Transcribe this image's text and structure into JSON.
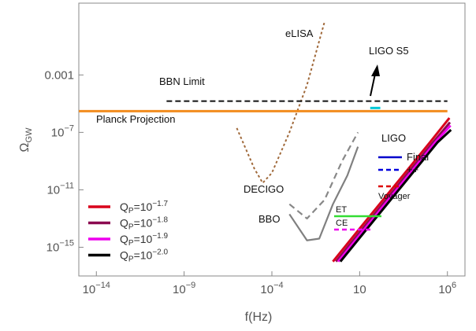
{
  "chart_data": {
    "type": "line",
    "xlabel": "f(Hz)",
    "ylabel": "Ω_GW",
    "x_scale": "log",
    "y_scale": "log",
    "xlim": [
      1e-15,
      10000000.0
    ],
    "ylim": [
      1e-17,
      100.0
    ],
    "grid": false,
    "legend_position": "bottom-left",
    "x_ticks": [
      {
        "value": 1e-14,
        "base": "10",
        "exp": "−14"
      },
      {
        "value": 1e-09,
        "base": "10",
        "exp": "−9"
      },
      {
        "value": 0.0001,
        "base": "10",
        "exp": "−4"
      },
      {
        "value": 10,
        "base": "10",
        "exp": ""
      },
      {
        "value": 1000000.0,
        "base": "10",
        "exp": "6"
      }
    ],
    "y_ticks": [
      {
        "value": 0.001,
        "base": "0.001",
        "exp": ""
      },
      {
        "value": 1e-07,
        "base": "10",
        "exp": "−7"
      },
      {
        "value": 1e-11,
        "base": "10",
        "exp": "−11"
      },
      {
        "value": 1e-15,
        "base": "10",
        "exp": "−15"
      }
    ],
    "curves": [
      {
        "label": "eLISA",
        "color": "#a0693a",
        "dash": "3,3",
        "width": 2,
        "points": [
          [
            1e-06,
            2e-07
          ],
          [
            1e-05,
            3e-10
          ],
          [
            3e-05,
            3e-11
          ],
          [
            0.0001,
            1.5e-10
          ],
          [
            0.001,
            1e-07
          ],
          [
            0.01,
            0.0002
          ],
          [
            0.1,
            5
          ]
        ]
      },
      {
        "label": "DECIGO",
        "color": "#888888",
        "dash": "8,5",
        "width": 2.2,
        "points": [
          [
            0.001,
            1e-12
          ],
          [
            0.01,
            1e-13
          ],
          [
            0.1,
            2e-12
          ],
          [
            1,
            1e-09
          ],
          [
            8,
            1e-07
          ]
        ]
      },
      {
        "label": "BBO",
        "color": "#808080",
        "dash": "",
        "width": 2.2,
        "points": [
          [
            0.001,
            2e-13
          ],
          [
            0.01,
            3e-15
          ],
          [
            0.05,
            4e-15
          ],
          [
            0.3,
            1e-12
          ],
          [
            2,
            1e-10
          ],
          [
            8,
            1e-08
          ]
        ]
      },
      {
        "label": "BBN Limit",
        "color": "#111111",
        "dash": "7,4",
        "width": 2,
        "points": [
          [
            1e-10,
            1.5e-05
          ],
          [
            1000000.0,
            1.5e-05
          ]
        ]
      },
      {
        "label": "Planck Projection",
        "color": "#f28c1e",
        "dash": "",
        "width": 3,
        "points": [
          [
            1e-15,
            3e-06
          ],
          [
            1000000.0,
            3e-06
          ]
        ]
      },
      {
        "label": "LIGO S5",
        "color": "#00c8d8",
        "dash": "",
        "width": 3,
        "points": [
          [
            40,
            5e-06
          ],
          [
            150,
            5e-06
          ]
        ]
      }
    ],
    "ligo_legend": {
      "title": "LIGO",
      "entries": [
        {
          "label": "Final",
          "color": "#0000cc",
          "dash": ""
        },
        {
          "label": "++",
          "color": "#0000dd",
          "dash": "6,4"
        },
        {
          "label": "Voyager",
          "color": "#dd0000",
          "dash": "6,4"
        },
        {
          "label": "ET",
          "color": "#33dd33",
          "dash": ""
        },
        {
          "label": "CE",
          "color": "#ee00ee",
          "dash": "6,4"
        }
      ]
    },
    "series": [
      {
        "name": "Q_P=10^{-1.7}",
        "base": "Q",
        "sub": "P",
        "eq": "=10",
        "exp": "−1.7",
        "color": "#d9001b",
        "points": [
          [
            0.3,
            1e-16
          ],
          [
            10,
            2e-14
          ],
          [
            1000.0,
            2e-11
          ],
          [
            100000.0,
            2e-08
          ],
          [
            1300000.0,
            1e-06
          ]
        ]
      },
      {
        "name": "Q_P=10^{-1.8}",
        "base": "Q",
        "sub": "P",
        "eq": "=10",
        "exp": "−1.8",
        "color": "#8b0a50",
        "points": [
          [
            0.45,
            1e-16
          ],
          [
            15,
            2e-14
          ],
          [
            1500.0,
            2e-11
          ],
          [
            150000.0,
            2e-08
          ],
          [
            1400000.0,
            5e-07
          ]
        ]
      },
      {
        "name": "Q_P=10^{-1.9}",
        "base": "Q",
        "sub": "P",
        "eq": "=10",
        "exp": "−1.9",
        "color": "#ee00ee",
        "points": [
          [
            0.6,
            1e-16
          ],
          [
            20,
            2e-14
          ],
          [
            2000.0,
            2e-11
          ],
          [
            200000.0,
            2e-08
          ],
          [
            1500000.0,
            3e-07
          ]
        ]
      },
      {
        "name": "Q_P=10^{-2.0}",
        "base": "Q",
        "sub": "P",
        "eq": "=10",
        "exp": "−2.0",
        "color": "#000000",
        "points": [
          [
            0.8,
            1e-16
          ],
          [
            27,
            2e-14
          ],
          [
            2700.0,
            2e-11
          ],
          [
            270000.0,
            2e-08
          ],
          [
            1600000.0,
            1.5e-07
          ]
        ]
      }
    ]
  }
}
